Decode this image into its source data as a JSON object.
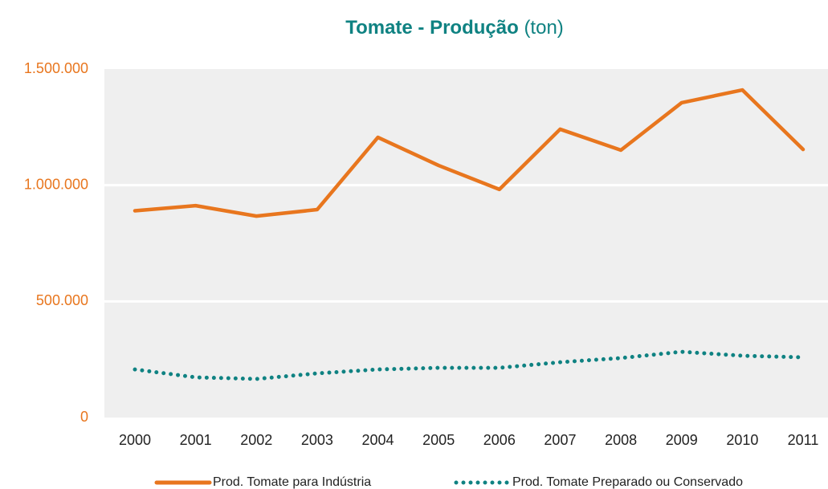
{
  "chart_data": {
    "type": "line",
    "title": "Tomate - Produção",
    "title_unit": "(ton)",
    "categories": [
      "2000",
      "2001",
      "2002",
      "2003",
      "2004",
      "2005",
      "2006",
      "2007",
      "2008",
      "2009",
      "2010",
      "2011"
    ],
    "series": [
      {
        "name": "Prod. Tomate para Indústria",
        "color": "#e8761e",
        "style": "solid",
        "values": [
          890000,
          912000,
          867000,
          895000,
          1206000,
          1085000,
          982000,
          1241000,
          1151000,
          1355000,
          1410000,
          1154000
        ]
      },
      {
        "name": "Prod. Tomate Preparado ou Conservado",
        "color": "#0f8282",
        "style": "dotted",
        "values": [
          207000,
          173000,
          166000,
          190000,
          207000,
          214000,
          214000,
          238000,
          256000,
          283000,
          266000,
          259000
        ]
      }
    ],
    "ylim": [
      0,
      1500000
    ],
    "yticks": [
      0,
      {
        "value": 500000,
        "label": "500.000"
      },
      {
        "value": 1000000,
        "label": "1.000.000"
      },
      {
        "value": 1500000,
        "label": "1.500.000"
      }
    ],
    "grid": true,
    "legend": "bottom"
  }
}
